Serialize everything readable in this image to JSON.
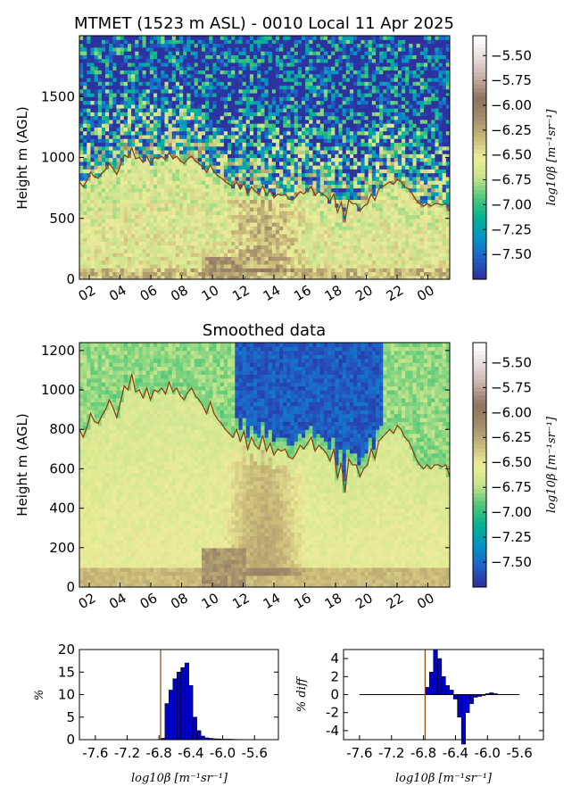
{
  "chart_data": [
    {
      "type": "heatmap",
      "title": "MTMET (1523 m ASL) - 0010 Local 11 Apr 2025",
      "ylabel": "Height m (AGL)",
      "ylim": [
        0,
        2000
      ],
      "yticks": [
        0,
        500,
        1000,
        1500
      ],
      "xticks": [
        "02",
        "04",
        "06",
        "08",
        "10",
        "12",
        "14",
        "16",
        "18",
        "20",
        "22",
        "00"
      ],
      "colorbar": {
        "label": "log10β [m⁻¹sr⁻¹]",
        "range": [
          -7.75,
          -5.3
        ],
        "ticks": [
          -5.5,
          -5.75,
          -6.0,
          -6.25,
          -6.5,
          -6.75,
          -7.0,
          -7.25,
          -7.5
        ]
      },
      "boundary_layer_height_m": [
        800,
        760,
        810,
        880,
        840,
        830,
        870,
        900,
        950,
        910,
        860,
        940,
        1020,
        1000,
        1080,
        990,
        1000,
        960,
        1010,
        950,
        1000,
        990,
        1010,
        980,
        1040,
        990,
        1010,
        970,
        950,
        990,
        1010,
        970,
        950,
        920,
        880,
        940,
        880,
        850,
        830,
        800,
        780,
        760,
        800,
        740,
        790,
        700,
        760,
        720,
        700,
        770,
        690,
        730,
        670,
        700,
        690,
        700,
        660,
        650,
        680,
        720,
        700,
        730,
        760,
        690,
        720,
        700,
        680,
        640,
        700,
        550,
        630,
        480,
        650,
        620,
        620,
        560,
        600,
        620,
        700,
        650,
        740,
        760,
        780,
        800,
        780,
        820,
        800,
        760,
        740,
        700,
        650,
        620,
        600,
        620,
        600,
        620,
        620,
        610,
        620,
        560
      ]
    },
    {
      "type": "heatmap",
      "title": "Smoothed data",
      "ylabel": "Height m (AGL)",
      "ylim": [
        0,
        1240
      ],
      "yticks": [
        0,
        200,
        400,
        600,
        800,
        1000,
        1200
      ],
      "xticks": [
        "02",
        "04",
        "06",
        "08",
        "10",
        "12",
        "14",
        "16",
        "18",
        "20",
        "22",
        "00"
      ],
      "colorbar": {
        "label": "log10β [m⁻¹sr⁻¹]",
        "range": [
          -7.75,
          -5.3
        ],
        "ticks": [
          -5.5,
          -5.75,
          -6.0,
          -6.25,
          -6.5,
          -6.75,
          -7.0,
          -7.25,
          -7.5
        ]
      },
      "boundary_layer_height_m": [
        800,
        760,
        810,
        880,
        840,
        830,
        870,
        900,
        950,
        910,
        860,
        940,
        1020,
        1000,
        1080,
        990,
        1000,
        960,
        1010,
        950,
        1000,
        990,
        1010,
        980,
        1040,
        990,
        1010,
        970,
        950,
        990,
        1010,
        970,
        950,
        920,
        880,
        940,
        880,
        850,
        830,
        800,
        780,
        760,
        800,
        740,
        790,
        700,
        760,
        720,
        700,
        770,
        690,
        730,
        670,
        700,
        690,
        700,
        660,
        650,
        680,
        720,
        700,
        730,
        760,
        690,
        720,
        700,
        680,
        640,
        700,
        550,
        630,
        480,
        650,
        620,
        620,
        560,
        600,
        620,
        700,
        650,
        740,
        760,
        780,
        800,
        780,
        820,
        800,
        760,
        740,
        700,
        650,
        620,
        600,
        620,
        600,
        620,
        620,
        610,
        620,
        560
      ]
    },
    {
      "type": "bar",
      "xlabel": "log10β [m⁻¹sr⁻¹]",
      "ylabel": "%",
      "xlim": [
        -7.8,
        -5.3
      ],
      "ylim": [
        0,
        20
      ],
      "xticks": [
        "-7.6",
        "-7.2",
        "-6.8",
        "-6.4",
        "-6.0",
        "-5.6"
      ],
      "yticks": [
        0,
        5,
        10,
        15,
        20
      ],
      "bin_width": 0.05,
      "x": [
        -6.75,
        -6.7,
        -6.65,
        -6.6,
        -6.55,
        -6.5,
        -6.45,
        -6.4,
        -6.35,
        -6.3,
        -6.25,
        -6.2,
        -6.15,
        -6.1,
        -6.05,
        -6.0,
        -5.95,
        -5.9,
        -5.85
      ],
      "values": [
        0.3,
        8,
        11,
        13.5,
        15,
        16,
        17,
        12,
        5,
        2,
        0.8,
        0.4,
        0.3,
        0.2,
        0.15,
        0.1,
        0.1,
        0.1,
        0.05
      ],
      "reference_x": -6.78
    },
    {
      "type": "bar",
      "xlabel": "log10β [m⁻¹sr⁻¹]",
      "ylabel": "% diff",
      "xlim": [
        -7.8,
        -5.3
      ],
      "ylim": [
        -5,
        5
      ],
      "xticks": [
        "-7.6",
        "-7.2",
        "-6.8",
        "-6.4",
        "-6.0",
        "-5.6"
      ],
      "yticks": [
        -4,
        -2,
        0,
        2,
        4
      ],
      "bin_width": 0.05,
      "x": [
        -6.75,
        -6.7,
        -6.65,
        -6.6,
        -6.55,
        -6.5,
        -6.45,
        -6.4,
        -6.35,
        -6.3,
        -6.25,
        -6.2,
        -6.15,
        -6.1,
        -6.05,
        -6.0,
        -5.95,
        -5.9
      ],
      "values": [
        0.8,
        2.5,
        5,
        4,
        2,
        1,
        0.5,
        -0.5,
        -2.5,
        -5.5,
        -2,
        -1,
        -0.3,
        -0.2,
        -0.1,
        0.1,
        0.2,
        0.1
      ],
      "reference_x": -6.78
    }
  ],
  "colors": {
    "boundary_line": "#8B4513",
    "hist_bar": "#0000cc",
    "reference_line": "#8B4513",
    "colormap_gist_earth_r": [
      "#ffffff",
      "#e6dcdc",
      "#c8aea8",
      "#8f7462",
      "#a08c6a",
      "#c8b878",
      "#ecec99",
      "#c8e48c",
      "#50c878",
      "#00b490",
      "#0096c8",
      "#1e64c8",
      "#2d32a0"
    ]
  }
}
